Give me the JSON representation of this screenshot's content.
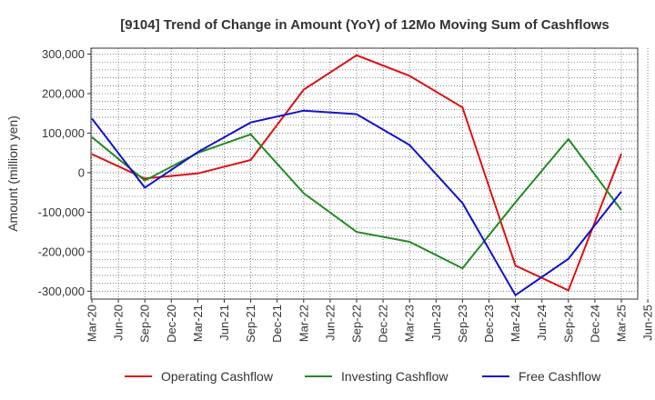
{
  "chart_data": {
    "type": "line",
    "title": "[9104]  Trend of Change in Amount (YoY) of 12Mo Moving Sum of Cashflows",
    "xlabel": "",
    "ylabel": "Amount (million yen)",
    "ylim": [
      -320000,
      315000
    ],
    "yticks": [
      300000,
      200000,
      100000,
      0,
      -100000,
      -200000,
      -300000
    ],
    "ytick_labels": [
      "300,000",
      "200,000",
      "100,000",
      "0",
      "-100,000",
      "-200,000",
      "-300,000"
    ],
    "categories": [
      "Mar-20",
      "Jun-20",
      "Sep-20",
      "Dec-20",
      "Mar-21",
      "Jun-21",
      "Sep-21",
      "Dec-21",
      "Mar-22",
      "Jun-22",
      "Sep-22",
      "Dec-22",
      "Mar-23",
      "Jun-23",
      "Sep-23",
      "Dec-23",
      "Mar-24",
      "Jun-24",
      "Sep-24",
      "Dec-24",
      "Mar-25",
      "Jun-25"
    ],
    "grid": true,
    "legend_position": "bottom",
    "series": [
      {
        "name": "Operating Cashflow",
        "color": "#dd1111",
        "values": [
          47000,
          null,
          -15000,
          null,
          -2000,
          null,
          32000,
          null,
          210000,
          null,
          297000,
          null,
          245000,
          null,
          165000,
          null,
          -235000,
          null,
          -298000,
          null,
          48000,
          null
        ]
      },
      {
        "name": "Investing Cashflow",
        "color": "#228b22",
        "values": [
          90000,
          null,
          -20000,
          null,
          50000,
          null,
          97000,
          null,
          -52000,
          null,
          -150000,
          null,
          -175000,
          null,
          -242000,
          null,
          -75000,
          null,
          85000,
          null,
          -95000,
          null
        ]
      },
      {
        "name": "Free Cashflow",
        "color": "#1111cc",
        "values": [
          137000,
          null,
          -38000,
          null,
          52000,
          null,
          127000,
          null,
          157000,
          null,
          148000,
          null,
          70000,
          null,
          -77000,
          null,
          -310000,
          null,
          -218000,
          null,
          -48000,
          null
        ]
      }
    ]
  }
}
